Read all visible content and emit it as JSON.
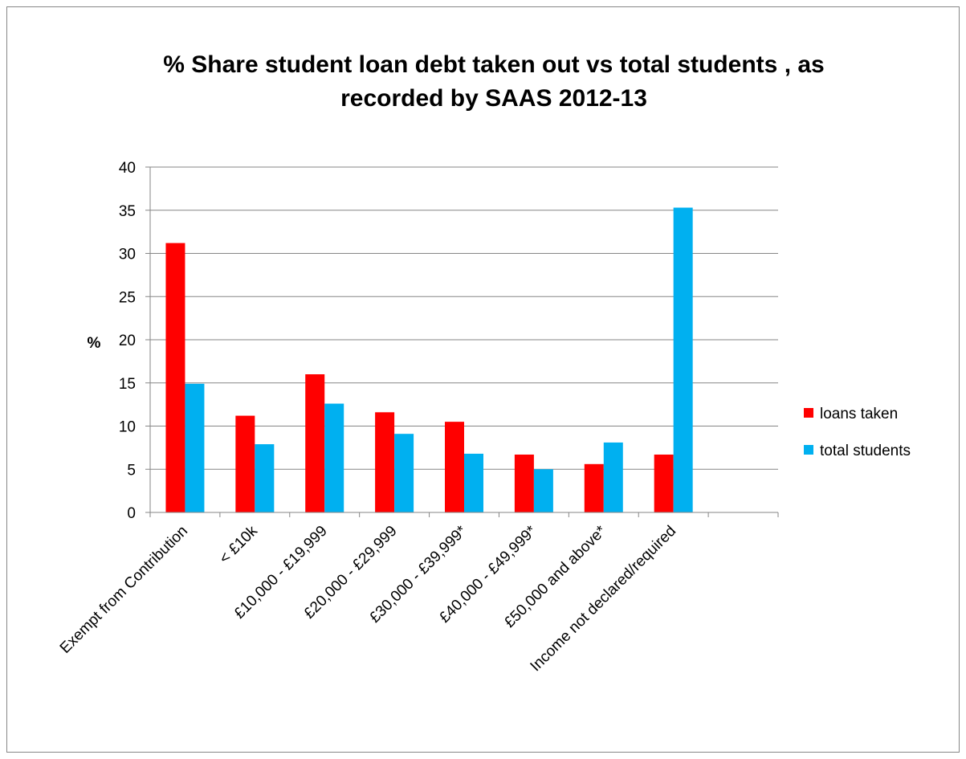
{
  "chart_data": {
    "type": "bar",
    "title": "% Share student loan debt taken out vs total students , as recorded by SAAS 2012-13",
    "title_lines": [
      "% Share student loan debt taken out vs total students , as",
      "recorded by SAAS 2012-13"
    ],
    "xlabel": "",
    "ylabel": "%",
    "ylim": [
      0,
      40
    ],
    "yticks": [
      0,
      5,
      10,
      15,
      20,
      25,
      30,
      35,
      40
    ],
    "grid": true,
    "legend_position": "right",
    "categories": [
      "Exempt from Contribution",
      "< £10k",
      "£10,000 - £19,999",
      "£20,000 - £29,999",
      "£30,000 - £39,999*",
      "£40,000 - £49,999*",
      "£50,000 and above*",
      "Income not declared/required"
    ],
    "series": [
      {
        "name": "loans taken",
        "color": "#ff0000",
        "values": [
          31.2,
          11.2,
          16.0,
          11.6,
          10.5,
          6.7,
          5.6,
          6.7
        ]
      },
      {
        "name": "total students",
        "color": "#00b0f0",
        "values": [
          14.9,
          7.9,
          12.6,
          9.1,
          6.8,
          5.0,
          8.1,
          35.3
        ]
      }
    ]
  }
}
